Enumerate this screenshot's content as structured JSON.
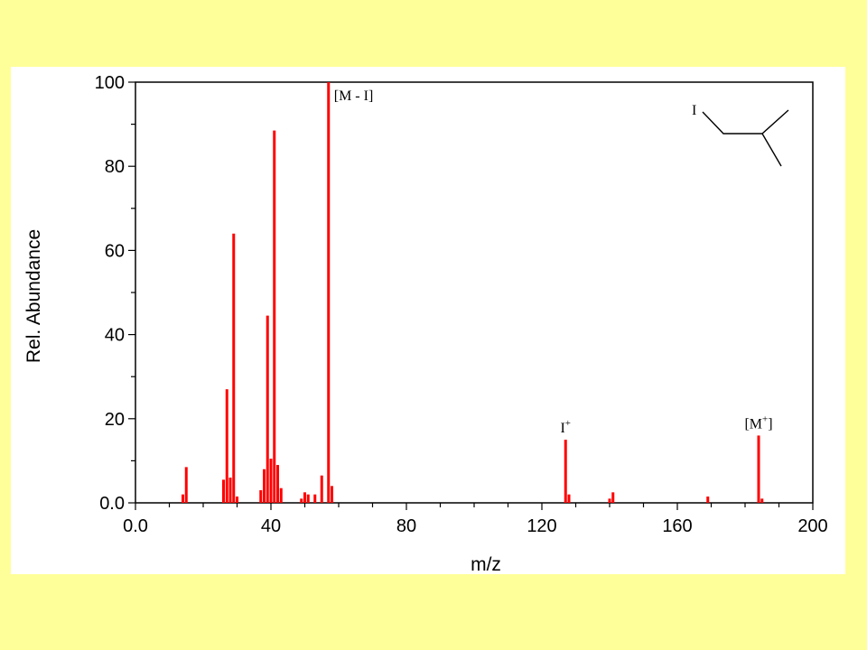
{
  "chart_data": {
    "type": "bar",
    "xlabel": "m/z",
    "ylabel": "Rel. Abundance",
    "xlim": [
      0,
      200
    ],
    "ylim": [
      0,
      100
    ],
    "x_ticks": [
      "0.0",
      "40",
      "80",
      "120",
      "160",
      "200"
    ],
    "y_ticks": [
      "0.0",
      "20",
      "40",
      "60",
      "80",
      "100"
    ],
    "bar_color": "#ff0000",
    "peaks": [
      {
        "mz": 14,
        "value": 2
      },
      {
        "mz": 15,
        "value": 8.5
      },
      {
        "mz": 26,
        "value": 5.5
      },
      {
        "mz": 27,
        "value": 27
      },
      {
        "mz": 28,
        "value": 6
      },
      {
        "mz": 29,
        "value": 64
      },
      {
        "mz": 30,
        "value": 1.5
      },
      {
        "mz": 37,
        "value": 3
      },
      {
        "mz": 38,
        "value": 8
      },
      {
        "mz": 39,
        "value": 44.5
      },
      {
        "mz": 40,
        "value": 10.5
      },
      {
        "mz": 41,
        "value": 88.5
      },
      {
        "mz": 42,
        "value": 9
      },
      {
        "mz": 43,
        "value": 3.5
      },
      {
        "mz": 49,
        "value": 1
      },
      {
        "mz": 50,
        "value": 2.5
      },
      {
        "mz": 51,
        "value": 2
      },
      {
        "mz": 53,
        "value": 2
      },
      {
        "mz": 55,
        "value": 6.5
      },
      {
        "mz": 57,
        "value": 100
      },
      {
        "mz": 58,
        "value": 4
      },
      {
        "mz": 127,
        "value": 15
      },
      {
        "mz": 128,
        "value": 2
      },
      {
        "mz": 140,
        "value": 1
      },
      {
        "mz": 141,
        "value": 2.5
      },
      {
        "mz": 169,
        "value": 1.5
      },
      {
        "mz": 184,
        "value": 16
      },
      {
        "mz": 185,
        "value": 1
      }
    ],
    "annotations": [
      {
        "mz": 57,
        "text": "[M - I]",
        "sup": "",
        "suffix": ""
      },
      {
        "mz": 127,
        "text": "I",
        "sup": "+",
        "suffix": ""
      },
      {
        "mz": 184,
        "text": "[M",
        "sup": "+",
        "suffix": "]"
      }
    ],
    "structure": {
      "atom_label": "I"
    }
  }
}
